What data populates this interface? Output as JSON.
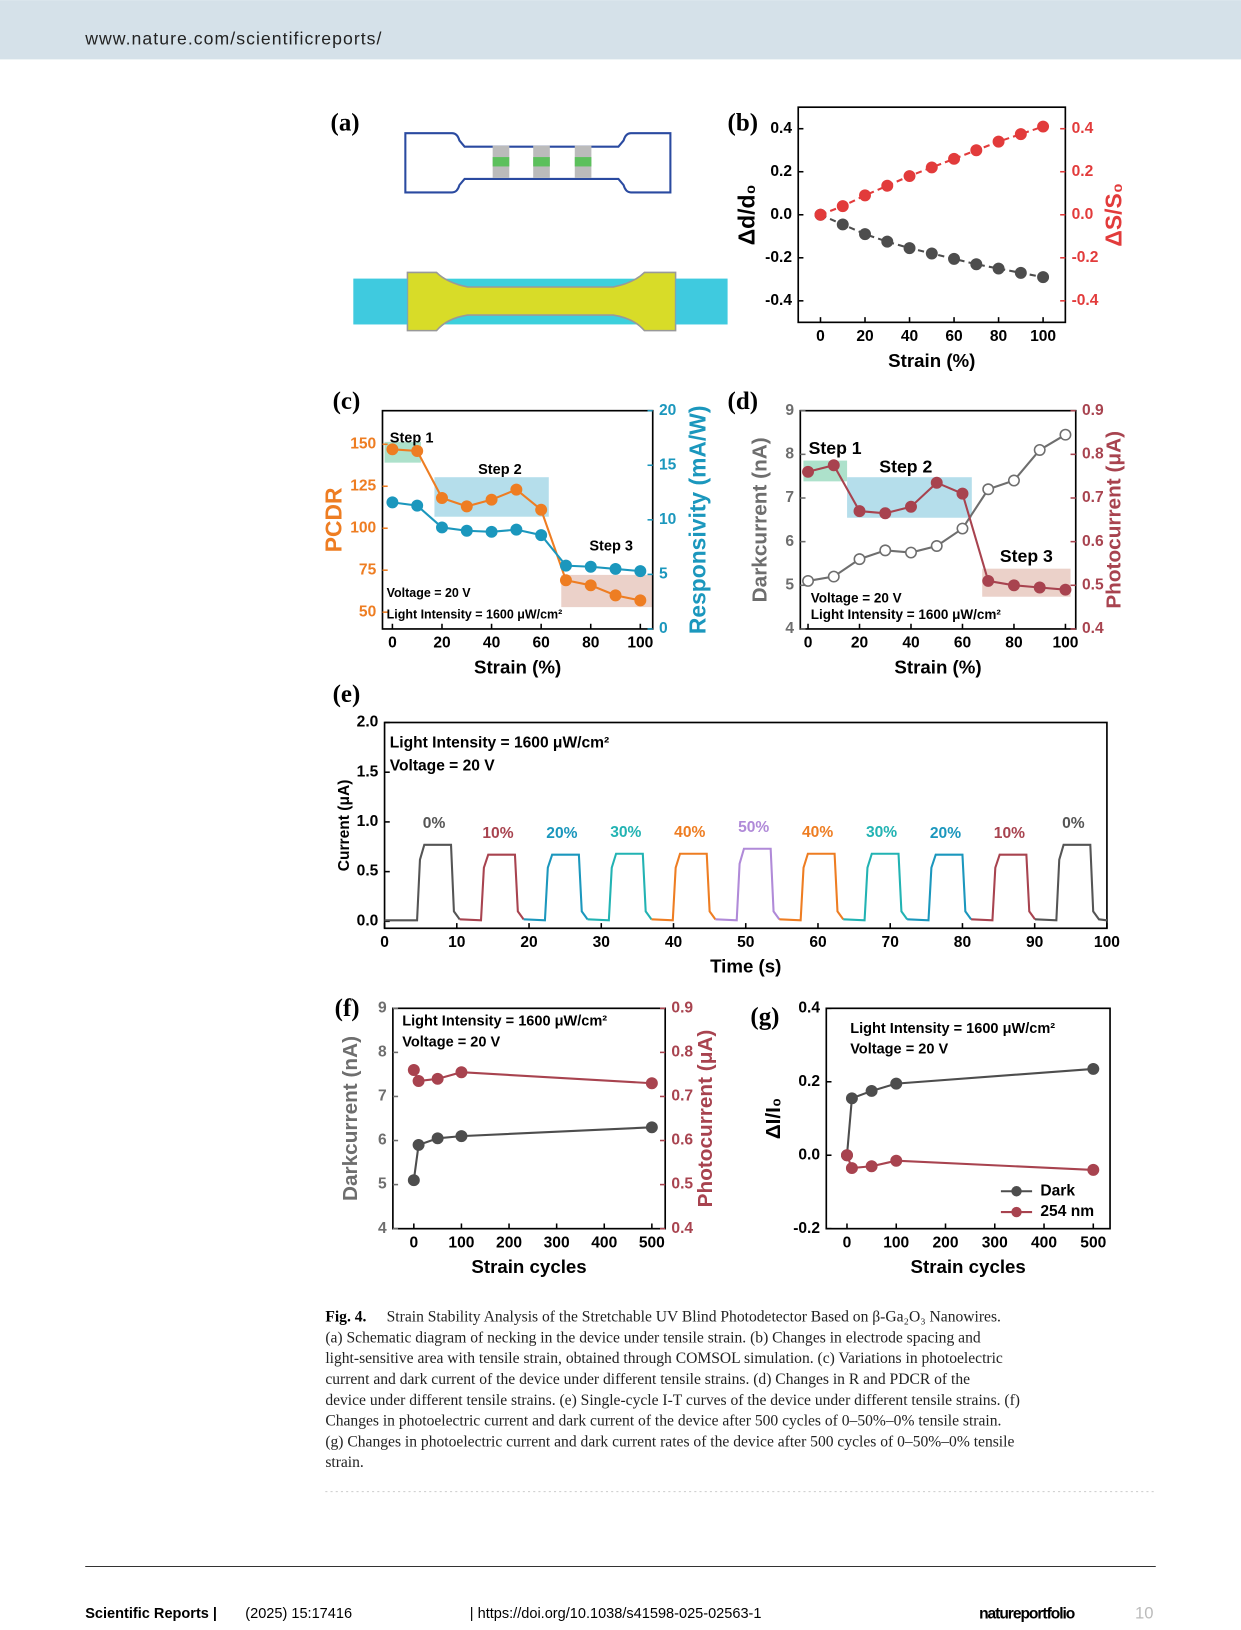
{
  "header": {
    "url": "www.nature.com/scientificreports/"
  },
  "figure": {
    "schematic_label": "(a)"
  },
  "chart_data": [
    {
      "type": "line",
      "label": "(b)",
      "xlabel": "Strain (%)",
      "ylabel": "Δd/d₀",
      "y2label": "ΔS/S₀",
      "xlim": [
        -10,
        110
      ],
      "xticks": [
        0,
        20,
        40,
        60,
        80,
        100
      ],
      "ylim": [
        -0.5,
        0.5
      ],
      "yticks": [
        -0.4,
        -0.2,
        {
          "value": 0,
          "label": "0.0"
        },
        0.2,
        0.4
      ],
      "y2lim": [
        -0.5,
        0.5
      ],
      "y2ticks": [
        -0.4,
        -0.2,
        {
          "value": 0,
          "label": "0.0"
        },
        0.2,
        0.4
      ],
      "ycolor": "#000000",
      "y2color": "#e23b3b",
      "x": [
        0,
        10,
        20,
        30,
        40,
        50,
        60,
        70,
        80,
        90,
        100
      ],
      "series": [
        {
          "color": "#4d4d4d",
          "marker": "filled",
          "linestyle": "dashed",
          "values": [
            0,
            -0.045,
            -0.09,
            -0.125,
            -0.155,
            -0.18,
            -0.205,
            -0.23,
            -0.25,
            -0.27,
            -0.29
          ]
        },
        {
          "color": "#e23b3b",
          "marker": "filled",
          "linestyle": "dashed",
          "axis": "y2",
          "values": [
            0,
            0.04,
            0.09,
            0.135,
            0.18,
            0.22,
            0.26,
            0.3,
            0.34,
            0.375,
            0.41
          ]
        }
      ]
    },
    {
      "type": "line",
      "label": "(c)",
      "xlabel": "Strain (%)",
      "ylabel": "PCDR",
      "y2label": "Responsivity (mA/W)",
      "xlim": [
        -4,
        105
      ],
      "xticks": [
        0,
        20,
        40,
        60,
        80,
        100
      ],
      "ylim": [
        40,
        170
      ],
      "yticks": [
        50,
        75,
        100,
        125,
        150
      ],
      "y2lim": [
        0,
        20
      ],
      "y2ticks": [
        0,
        5,
        10,
        15,
        20
      ],
      "ycolor": "#ee7d22",
      "y2color": "#1b97bd",
      "x": [
        0,
        10,
        20,
        30,
        40,
        50,
        60,
        70,
        80,
        90,
        100
      ],
      "series": [
        {
          "color": "#ee7d22",
          "marker": "filled",
          "values": [
            147,
            146,
            118,
            113,
            117,
            123,
            111,
            69,
            66,
            60,
            57
          ]
        },
        {
          "color": "#1b97bd",
          "marker": "filled",
          "axis": "y2",
          "values": [
            11.6,
            11.3,
            9.3,
            9.0,
            8.9,
            9.1,
            8.6,
            5.8,
            5.7,
            5.5,
            5.3
          ]
        }
      ],
      "annotations": [
        "Step 1",
        "Step 2",
        "Step 3",
        "Voltage = 20 V",
        "Light Intensity = 1600 μW/cm²"
      ]
    },
    {
      "type": "line",
      "label": "(d)",
      "xlabel": "Strain (%)",
      "ylabel": "Darkcurrent (nA)",
      "y2label": "Photocurrent (μA)",
      "xlim": [
        -3,
        104
      ],
      "xticks": [
        0,
        20,
        40,
        60,
        80,
        100
      ],
      "ylim": [
        4,
        9
      ],
      "yticks": [
        4,
        5,
        6,
        7,
        8,
        9
      ],
      "y2lim": [
        0.4,
        0.9
      ],
      "y2ticks": [
        0.4,
        0.5,
        0.6,
        0.7,
        0.8,
        0.9
      ],
      "ycolor": "#6e6e6e",
      "y2color": "#a8434f",
      "x": [
        0,
        10,
        20,
        30,
        40,
        50,
        60,
        70,
        80,
        90,
        100
      ],
      "series": [
        {
          "color": "#6e6e6e",
          "marker": "hollow",
          "values": [
            5.1,
            5.2,
            5.6,
            5.8,
            5.75,
            5.9,
            6.3,
            7.2,
            7.4,
            8.1,
            8.45
          ]
        },
        {
          "color": "#a8434f",
          "marker": "filled",
          "axis": "y2",
          "values": [
            0.76,
            0.775,
            0.67,
            0.665,
            0.68,
            0.735,
            0.71,
            0.51,
            0.5,
            0.495,
            0.49
          ]
        }
      ],
      "annotations": [
        "Step 1",
        "Step 2",
        "Step 3",
        "Voltage = 20 V",
        "Light Intensity = 1600 μW/cm²"
      ]
    },
    {
      "type": "line",
      "label": "(e)",
      "xlabel": "Time (s)",
      "ylabel": "Current (μA)",
      "xlim": [
        0,
        100
      ],
      "xticks": [
        0,
        10,
        20,
        30,
        40,
        50,
        60,
        70,
        80,
        90,
        100
      ],
      "ylim": [
        -0.07,
        2.0
      ],
      "yticks": [
        {
          "value": 0,
          "label": "0.0"
        },
        0.5,
        {
          "value": 1,
          "label": "1.0"
        },
        1.5,
        {
          "value": 2,
          "label": "2.0"
        }
      ],
      "ycolor": "#000000",
      "series_labels": true,
      "series": [
        {
          "name": "0%",
          "color": "#555555",
          "x": [
            0,
            4.5,
            4.9,
            5.5,
            9.2,
            9.6,
            10.4
          ],
          "values": [
            0.01,
            0.01,
            0.62,
            0.77,
            0.77,
            0.1,
            0.02
          ]
        },
        {
          "name": "10%",
          "color": "#a8434f",
          "x": [
            10.4,
            13.35,
            13.75,
            14.35,
            18.05,
            18.45,
            19.25
          ],
          "values": [
            0.02,
            0.01,
            0.54,
            0.67,
            0.67,
            0.1,
            0.02
          ]
        },
        {
          "name": "20%",
          "color": "#1b97bd",
          "x": [
            19.25,
            22.2,
            22.6,
            23.2,
            26.9,
            27.3,
            28.1
          ],
          "values": [
            0.02,
            0.01,
            0.54,
            0.67,
            0.67,
            0.1,
            0.02
          ]
        },
        {
          "name": "30%",
          "color": "#22b3b3",
          "x": [
            28.1,
            31.05,
            31.45,
            32.05,
            35.75,
            36.15,
            36.95
          ],
          "values": [
            0.02,
            0.01,
            0.54,
            0.68,
            0.68,
            0.1,
            0.02
          ]
        },
        {
          "name": "40%",
          "color": "#ee7d22",
          "x": [
            36.95,
            39.9,
            40.3,
            40.9,
            44.6,
            45.0,
            45.8
          ],
          "values": [
            0.02,
            0.01,
            0.54,
            0.68,
            0.68,
            0.1,
            0.02
          ]
        },
        {
          "name": "50%",
          "color": "#b08ad8",
          "x": [
            45.8,
            48.75,
            49.15,
            49.75,
            53.45,
            53.85,
            54.65
          ],
          "values": [
            0.02,
            0.01,
            0.58,
            0.73,
            0.73,
            0.1,
            0.02
          ]
        },
        {
          "name": "40%",
          "color": "#ee7d22",
          "x": [
            54.65,
            57.6,
            58.0,
            58.6,
            62.3,
            62.7,
            63.5
          ],
          "values": [
            0.02,
            0.01,
            0.54,
            0.68,
            0.68,
            0.1,
            0.02
          ]
        },
        {
          "name": "30%",
          "color": "#22b3b3",
          "x": [
            63.5,
            66.45,
            66.85,
            67.45,
            71.15,
            71.55,
            72.35
          ],
          "values": [
            0.02,
            0.01,
            0.54,
            0.68,
            0.68,
            0.1,
            0.02
          ]
        },
        {
          "name": "20%",
          "color": "#1b97bd",
          "x": [
            72.35,
            75.3,
            75.7,
            76.3,
            80.0,
            80.4,
            81.2
          ],
          "values": [
            0.02,
            0.01,
            0.54,
            0.67,
            0.67,
            0.1,
            0.02
          ]
        },
        {
          "name": "10%",
          "color": "#a8434f",
          "x": [
            81.2,
            84.15,
            84.55,
            85.15,
            88.85,
            89.25,
            90.05
          ],
          "values": [
            0.02,
            0.01,
            0.54,
            0.67,
            0.67,
            0.1,
            0.02
          ]
        },
        {
          "name": "0%",
          "color": "#555555",
          "x": [
            90.05,
            93.0,
            93.4,
            94.0,
            97.7,
            98.1,
            98.9,
            100
          ],
          "values": [
            0.02,
            0.01,
            0.62,
            0.77,
            0.77,
            0.1,
            0.02,
            0.01
          ]
        }
      ],
      "annotations": [
        "Light Intensity = 1600 μW/cm²",
        "Voltage = 20 V"
      ]
    },
    {
      "type": "line",
      "label": "(f)",
      "xlabel": "Strain cycles",
      "ylabel": "Darkcurrent (nA)",
      "y2label": "Photocurrent (μA)",
      "xlim": [
        -44,
        528
      ],
      "xticks": [
        0,
        100,
        200,
        300,
        400,
        500
      ],
      "ylim": [
        4,
        9
      ],
      "yticks": [
        4,
        5,
        6,
        7,
        8,
        9
      ],
      "y2lim": [
        0.4,
        0.9
      ],
      "y2ticks": [
        0.4,
        0.5,
        0.6,
        0.7,
        0.8,
        0.9
      ],
      "ycolor": "#6e6e6e",
      "y2color": "#a8434f",
      "x": [
        0,
        10,
        50,
        100,
        500
      ],
      "series": [
        {
          "color": "#4d4d4d",
          "marker": "filled",
          "values": [
            5.1,
            5.9,
            6.05,
            6.1,
            6.3
          ]
        },
        {
          "color": "#a8434f",
          "marker": "filled",
          "axis": "y2",
          "values": [
            0.76,
            0.735,
            0.74,
            0.755,
            0.73
          ]
        }
      ],
      "annotations": [
        "Light Intensity = 1600 μW/cm²",
        "Voltage = 20 V"
      ]
    },
    {
      "type": "line",
      "label": "(g)",
      "xlabel": "Strain cycles",
      "ylabel": "ΔI/I₀",
      "xlim": [
        -42,
        534
      ],
      "xticks": [
        0,
        100,
        200,
        300,
        400,
        500
      ],
      "ylim": [
        -0.2,
        0.4
      ],
      "yticks": [
        -0.2,
        {
          "value": 0,
          "label": "0.0"
        },
        0.2,
        0.4
      ],
      "ycolor": "#000000",
      "legend": "lower right",
      "x": [
        0,
        10,
        50,
        100,
        500
      ],
      "series": [
        {
          "name": "Dark",
          "color": "#4d4d4d",
          "marker": "filled",
          "values": [
            0,
            0.155,
            0.175,
            0.195,
            0.235
          ]
        },
        {
          "name": "254 nm",
          "color": "#a8434f",
          "marker": "filled",
          "values": [
            0,
            -0.035,
            -0.03,
            -0.015,
            -0.04
          ]
        }
      ],
      "annotations": [
        "Light Intensity = 1600 μW/cm²",
        "Voltage = 20 V"
      ]
    }
  ],
  "caption": {
    "label": "Fig. 4.",
    "lines": [
      "Strain Stability Analysis of the Stretchable UV Blind Photodetector Based on β-Ga₂O₃ Nanowires.",
      "(a) Schematic diagram of necking in the device under tensile strain. (b) Changes in electrode spacing and",
      "light-sensitive area with tensile strain, obtained through COMSOL simulation. (c) Variations in photoelectric",
      "current and dark current of the device under different tensile strains. (d) Changes in R and PDCR of the",
      "device under different tensile strains. (e) Single-cycle I-T curves of the device under different tensile strains. (f)",
      "Changes in photoelectric current and dark current of the device after 500 cycles of 0–50%–0% tensile strain.",
      "(g) Changes in photoelectric current and dark current rates of the device after 500 cycles of 0–50%–0% tensile",
      "strain."
    ]
  },
  "footer": {
    "journal": "Scientific Reports |",
    "citation": "(2025) 15:17416",
    "doi": "| https://doi.org/10.1038/s41598-025-02563-1",
    "publisher": "natureportfolio",
    "page": "10"
  }
}
